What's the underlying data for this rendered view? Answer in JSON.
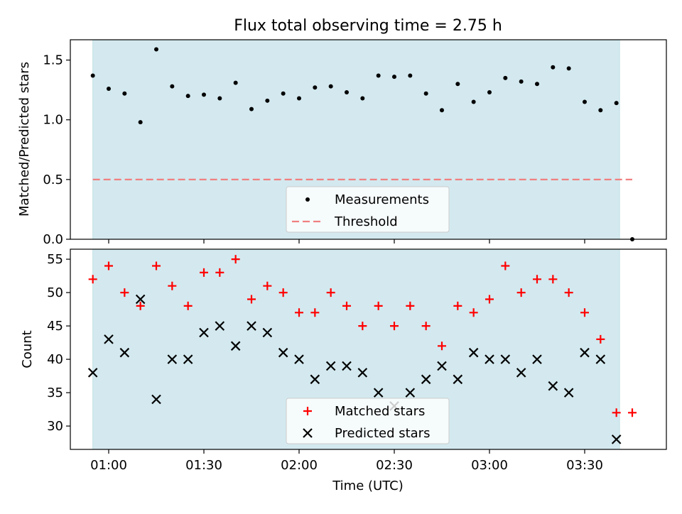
{
  "chart_data": [
    {
      "type": "scatter",
      "title": "Flux total observing time = 2.75 h",
      "xlabel": "",
      "ylabel": "Matched/Predicted stars",
      "ylim": [
        0,
        1.67
      ],
      "yticks": [
        "0.0",
        "0.5",
        "1.0",
        "1.5"
      ],
      "ytick_values": [
        0,
        0.5,
        1.0,
        1.5
      ],
      "shaded_span": {
        "start": "00:55",
        "end": "03:41",
        "color": "#d3e9ef"
      },
      "legend_position": "lower center",
      "series": [
        {
          "name": "Measurements",
          "marker": "dot",
          "color": "#000000",
          "x": [
            "00:55",
            "01:00",
            "01:05",
            "01:10",
            "01:15",
            "01:20",
            "01:25",
            "01:30",
            "01:35",
            "01:40",
            "01:45",
            "01:50",
            "01:55",
            "02:00",
            "02:05",
            "02:10",
            "02:15",
            "02:20",
            "02:25",
            "02:30",
            "02:35",
            "02:40",
            "02:45",
            "02:50",
            "02:55",
            "03:00",
            "03:05",
            "03:10",
            "03:15",
            "03:20",
            "03:25",
            "03:30",
            "03:35",
            "03:40",
            "03:45"
          ],
          "y": [
            1.37,
            1.26,
            1.22,
            0.98,
            1.59,
            1.28,
            1.2,
            1.21,
            1.18,
            1.31,
            1.09,
            1.16,
            1.22,
            1.18,
            1.27,
            1.28,
            1.23,
            1.18,
            1.37,
            1.36,
            1.37,
            1.22,
            1.08,
            1.3,
            1.15,
            1.23,
            1.35,
            1.32,
            1.3,
            1.44,
            1.43,
            1.15,
            1.08,
            1.14,
            0.0
          ]
        },
        {
          "name": "Threshold",
          "marker": "dashed-line",
          "color": "#f08080",
          "x": [
            "00:55",
            "03:45"
          ],
          "y": [
            0.5,
            0.5
          ]
        }
      ]
    },
    {
      "type": "scatter",
      "title": "",
      "xlabel": "Time (UTC)",
      "ylabel": "Count",
      "ylim": [
        26.5,
        56.5
      ],
      "yticks": [
        "30",
        "35",
        "40",
        "45",
        "50",
        "55"
      ],
      "ytick_values": [
        30,
        35,
        40,
        45,
        50,
        55
      ],
      "xticks": [
        "01:00",
        "01:30",
        "02:00",
        "02:30",
        "03:00",
        "03:30"
      ],
      "shaded_span": {
        "start": "00:55",
        "end": "03:41",
        "color": "#d3e9ef"
      },
      "legend_position": "lower center",
      "series": [
        {
          "name": "Matched stars",
          "marker": "plus",
          "color": "#ff0000",
          "x": [
            "00:55",
            "01:00",
            "01:05",
            "01:10",
            "01:15",
            "01:20",
            "01:25",
            "01:30",
            "01:35",
            "01:40",
            "01:45",
            "01:50",
            "01:55",
            "02:00",
            "02:05",
            "02:10",
            "02:15",
            "02:20",
            "02:25",
            "02:30",
            "02:35",
            "02:40",
            "02:45",
            "02:50",
            "02:55",
            "03:00",
            "03:05",
            "03:10",
            "03:15",
            "03:20",
            "03:25",
            "03:30",
            "03:35",
            "03:40",
            "03:45"
          ],
          "y": [
            52,
            54,
            50,
            48,
            54,
            51,
            48,
            53,
            53,
            55,
            49,
            51,
            50,
            47,
            47,
            50,
            48,
            45,
            48,
            45,
            48,
            45,
            42,
            48,
            47,
            49,
            54,
            50,
            52,
            52,
            50,
            47,
            43,
            32,
            32
          ]
        },
        {
          "name": "Predicted stars",
          "marker": "x",
          "color": "#000000",
          "x": [
            "00:55",
            "01:00",
            "01:05",
            "01:10",
            "01:15",
            "01:20",
            "01:25",
            "01:30",
            "01:35",
            "01:40",
            "01:45",
            "01:50",
            "01:55",
            "02:00",
            "02:05",
            "02:10",
            "02:15",
            "02:20",
            "02:25",
            "02:30",
            "02:35",
            "02:40",
            "02:45",
            "02:50",
            "02:55",
            "03:00",
            "03:05",
            "03:10",
            "03:15",
            "03:20",
            "03:25",
            "03:30",
            "03:35",
            "03:40"
          ],
          "y": [
            38,
            43,
            41,
            49,
            34,
            40,
            40,
            44,
            45,
            42,
            45,
            44,
            41,
            40,
            37,
            39,
            39,
            38,
            35,
            33,
            35,
            37,
            39,
            37,
            41,
            40,
            40,
            38,
            40,
            36,
            35,
            41,
            40,
            28
          ]
        }
      ]
    }
  ]
}
